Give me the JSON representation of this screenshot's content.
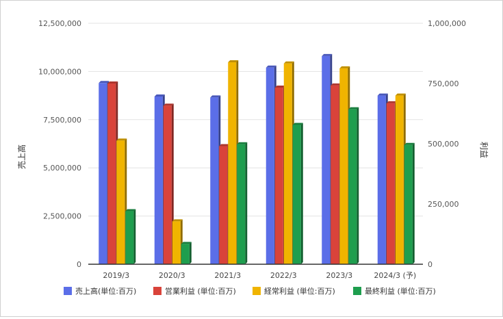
{
  "chart_data": {
    "type": "bar",
    "categories": [
      "2019/3",
      "2020/3",
      "2021/3",
      "2022/3",
      "2023/3",
      "2024/3 (予)"
    ],
    "y_left": {
      "label": "売上高",
      "ylim": [
        0,
        12500000
      ],
      "ticks": [
        "0",
        "2,500,000",
        "5,000,000",
        "7,500,000",
        "10,000,000",
        "12,500,000"
      ]
    },
    "y_right": {
      "label": "利益",
      "ylim": [
        0,
        1000000
      ],
      "ticks": [
        "0",
        "250,000",
        "500,000",
        "750,000",
        "1,000,000"
      ]
    },
    "series": [
      {
        "name": "売上高(単位:百万)",
        "axis": "left",
        "color": "#5b6ee8",
        "values": [
          9400000,
          8700000,
          8650000,
          10200000,
          10800000,
          8750000
        ]
      },
      {
        "name": "営業利益 (単位:百万)",
        "axis": "right",
        "color": "#d9433a",
        "values": [
          750000,
          658000,
          490000,
          733000,
          742000,
          668000
        ]
      },
      {
        "name": "経常利益 (単位:百万)",
        "axis": "right",
        "color": "#f0b400",
        "values": [
          513000,
          178000,
          838000,
          833000,
          813000,
          700000
        ]
      },
      {
        "name": "最終利益 (単位:百万)",
        "axis": "right",
        "color": "#1e9e4e",
        "values": [
          220000,
          84000,
          498000,
          578000,
          643000,
          495000
        ]
      }
    ],
    "legend_position": "bottom",
    "grid": true
  }
}
